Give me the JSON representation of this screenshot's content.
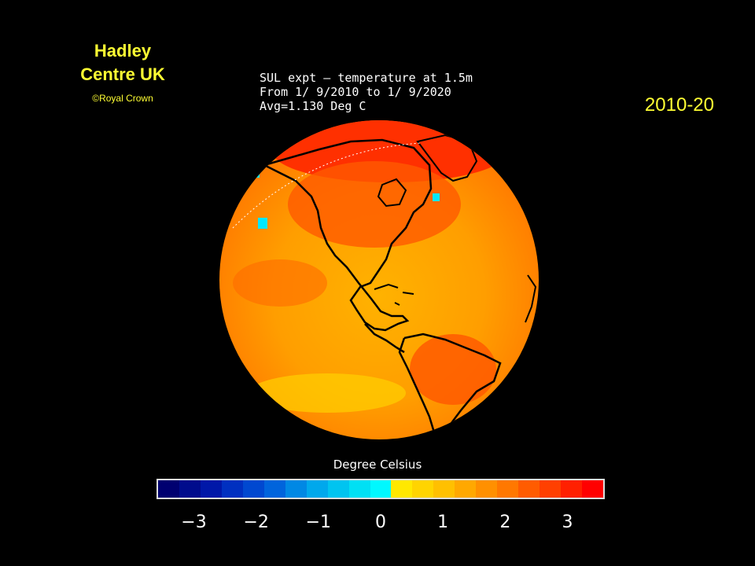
{
  "credit": {
    "org_line1": "Hadley",
    "org_line2": "Centre UK",
    "copyright": "©Royal Crown"
  },
  "period_label": "2010-20",
  "map": {
    "title_line1": "SUL expt — temperature at 1.5m",
    "title_line2": "From 1/ 9/2010 to 1/ 9/2020",
    "title_line3": "Avg=1.130 Deg C"
  },
  "colorbar": {
    "title": "Degree Celsius",
    "ticks": [
      "−3",
      "−2",
      "−1",
      "0",
      "1",
      "2",
      "3"
    ],
    "colors": [
      "#000070",
      "#000c8c",
      "#0018a8",
      "#0030c0",
      "#0048d0",
      "#0064dc",
      "#0088e4",
      "#00a8ec",
      "#00c4f0",
      "#00e0f4",
      "#00f8ff",
      "#ffe800",
      "#ffd400",
      "#ffc000",
      "#ffa800",
      "#ff9000",
      "#ff7800",
      "#ff5c00",
      "#ff4000",
      "#ff2000",
      "#ff0000"
    ]
  },
  "palette": {
    "text_yellow": "#ffff33",
    "text_white": "#ffffff",
    "background": "#000000"
  }
}
